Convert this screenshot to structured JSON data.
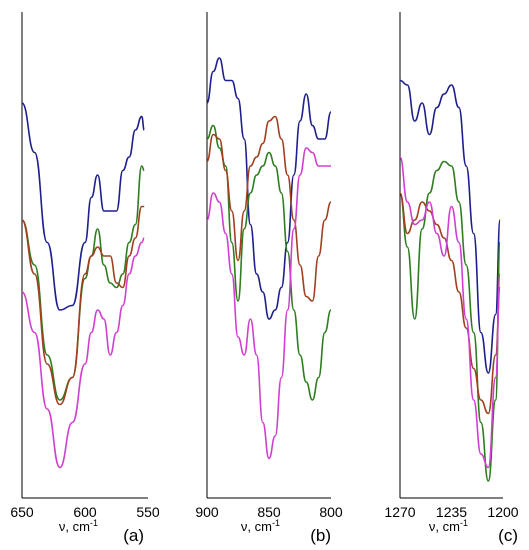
{
  "chart_data": [
    {
      "type": "line",
      "panel_label": "(a)",
      "xlabel": "ν, cm",
      "xlabel_sup": "-1",
      "xlim": [
        650,
        550
      ],
      "ylim": [
        0,
        100
      ],
      "x_ticks": [
        650,
        600,
        550
      ],
      "x_tick_labels": [
        "650",
        "600",
        "550"
      ],
      "grid": false,
      "legend": "none",
      "series": [
        {
          "color": "#1f1f8c",
          "x": [
            650,
            640,
            630,
            620,
            610,
            600,
            595,
            590,
            585,
            580,
            575,
            570,
            565,
            560,
            555,
            553
          ],
          "y": [
            86,
            75,
            55,
            40,
            41,
            55,
            65,
            70,
            62,
            62,
            62,
            71,
            74,
            80,
            83,
            80
          ]
        },
        {
          "color": "#2e7d1f",
          "x": [
            650,
            640,
            630,
            620,
            610,
            600,
            595,
            590,
            585,
            580,
            575,
            570,
            565,
            560,
            555,
            553
          ],
          "y": [
            60,
            50,
            30,
            20,
            25,
            47,
            52,
            58,
            50,
            46,
            45,
            48,
            55,
            59,
            72,
            71
          ]
        },
        {
          "color": "#a04020",
          "x": [
            650,
            640,
            630,
            620,
            610,
            600,
            595,
            590,
            585,
            580,
            575,
            570,
            565,
            560,
            555,
            553
          ],
          "y": [
            60,
            48,
            28,
            19,
            25,
            48,
            52,
            54,
            52,
            52,
            46,
            45,
            52,
            56,
            63,
            63
          ]
        },
        {
          "color": "#d040d0",
          "x": [
            650,
            640,
            630,
            620,
            610,
            600,
            595,
            590,
            585,
            580,
            575,
            570,
            565,
            560,
            555,
            553
          ],
          "y": [
            44,
            35,
            18,
            5,
            15,
            28,
            35,
            40,
            38,
            30,
            35,
            41,
            48,
            52,
            55,
            56
          ]
        }
      ]
    },
    {
      "type": "line",
      "panel_label": "(b)",
      "xlabel": "ν, cm",
      "xlabel_sup": "-1",
      "xlim": [
        900,
        800
      ],
      "ylim": [
        0,
        100
      ],
      "x_ticks": [
        900,
        850,
        800
      ],
      "x_tick_labels": [
        "900",
        "850",
        "800"
      ],
      "grid": false,
      "legend": "none",
      "series": [
        {
          "color": "#1f1f8c",
          "x": [
            900,
            895,
            890,
            885,
            880,
            875,
            870,
            865,
            860,
            855,
            850,
            845,
            840,
            835,
            830,
            825,
            820,
            815,
            810,
            805,
            800
          ],
          "y": [
            86,
            93,
            96,
            91,
            91,
            87,
            78,
            59,
            48,
            44,
            38,
            40,
            45,
            55,
            70,
            82,
            88,
            81,
            78,
            78,
            84
          ]
        },
        {
          "color": "#2e7d1f",
          "x": [
            900,
            895,
            890,
            885,
            880,
            875,
            870,
            865,
            860,
            855,
            850,
            845,
            840,
            835,
            830,
            825,
            820,
            815,
            810,
            805,
            800
          ],
          "y": [
            78,
            81,
            76,
            72,
            55,
            42,
            58,
            66,
            70,
            72,
            75,
            72,
            66,
            53,
            40,
            30,
            24,
            20,
            25,
            35,
            40
          ]
        },
        {
          "color": "#a04020",
          "x": [
            900,
            895,
            890,
            885,
            880,
            875,
            870,
            865,
            860,
            855,
            850,
            845,
            840,
            835,
            830,
            825,
            820,
            815,
            810,
            805,
            800
          ],
          "y": [
            73,
            79,
            78,
            71,
            62,
            51,
            62,
            72,
            74,
            77,
            82,
            83,
            78,
            70,
            60,
            50,
            43,
            42,
            52,
            60,
            64
          ]
        },
        {
          "color": "#d040d0",
          "x": [
            900,
            895,
            890,
            885,
            880,
            875,
            870,
            865,
            860,
            855,
            850,
            845,
            840,
            835,
            830,
            825,
            820,
            815,
            810,
            805,
            800
          ],
          "y": [
            60,
            66,
            64,
            57,
            48,
            34,
            30,
            38,
            30,
            15,
            7,
            12,
            25,
            40,
            58,
            70,
            76,
            75,
            72,
            72,
            72
          ]
        }
      ]
    },
    {
      "type": "line",
      "panel_label": "(c)",
      "xlabel": "ν, cm",
      "xlabel_sup": "-1",
      "xlim": [
        1270,
        1200
      ],
      "ylim": [
        0,
        100
      ],
      "x_ticks": [
        1270,
        1235,
        1200
      ],
      "x_tick_labels": [
        "1270",
        "1235",
        "1200"
      ],
      "grid": false,
      "legend": "none",
      "series": [
        {
          "color": "#1f1f8c",
          "x": [
            1270,
            1265,
            1260,
            1255,
            1250,
            1245,
            1240,
            1235,
            1230,
            1225,
            1220,
            1215,
            1210,
            1205,
            1202
          ],
          "y": [
            91,
            90,
            82,
            86,
            79,
            85,
            88,
            90,
            85,
            72,
            57,
            35,
            26,
            39,
            60
          ]
        },
        {
          "color": "#2e7d1f",
          "x": [
            1270,
            1265,
            1260,
            1255,
            1250,
            1245,
            1240,
            1235,
            1230,
            1225,
            1220,
            1215,
            1210,
            1205,
            1202
          ],
          "y": [
            66,
            54,
            38,
            58,
            66,
            71,
            73,
            72,
            64,
            50,
            35,
            15,
            2,
            20,
            55
          ]
        },
        {
          "color": "#a04020",
          "x": [
            1270,
            1265,
            1260,
            1255,
            1250,
            1245,
            1240,
            1235,
            1230,
            1225,
            1220,
            1215,
            1210,
            1205,
            1202
          ],
          "y": [
            66,
            57,
            60,
            64,
            62,
            59,
            56,
            51,
            44,
            36,
            27,
            20,
            17,
            30,
            45
          ]
        },
        {
          "color": "#d040d0",
          "x": [
            1270,
            1265,
            1260,
            1255,
            1250,
            1245,
            1240,
            1235,
            1230,
            1225,
            1220,
            1215,
            1210,
            1205,
            1202
          ],
          "y": [
            74,
            64,
            59,
            60,
            64,
            57,
            52,
            63,
            55,
            38,
            20,
            8,
            5,
            25,
            48
          ]
        }
      ]
    }
  ]
}
